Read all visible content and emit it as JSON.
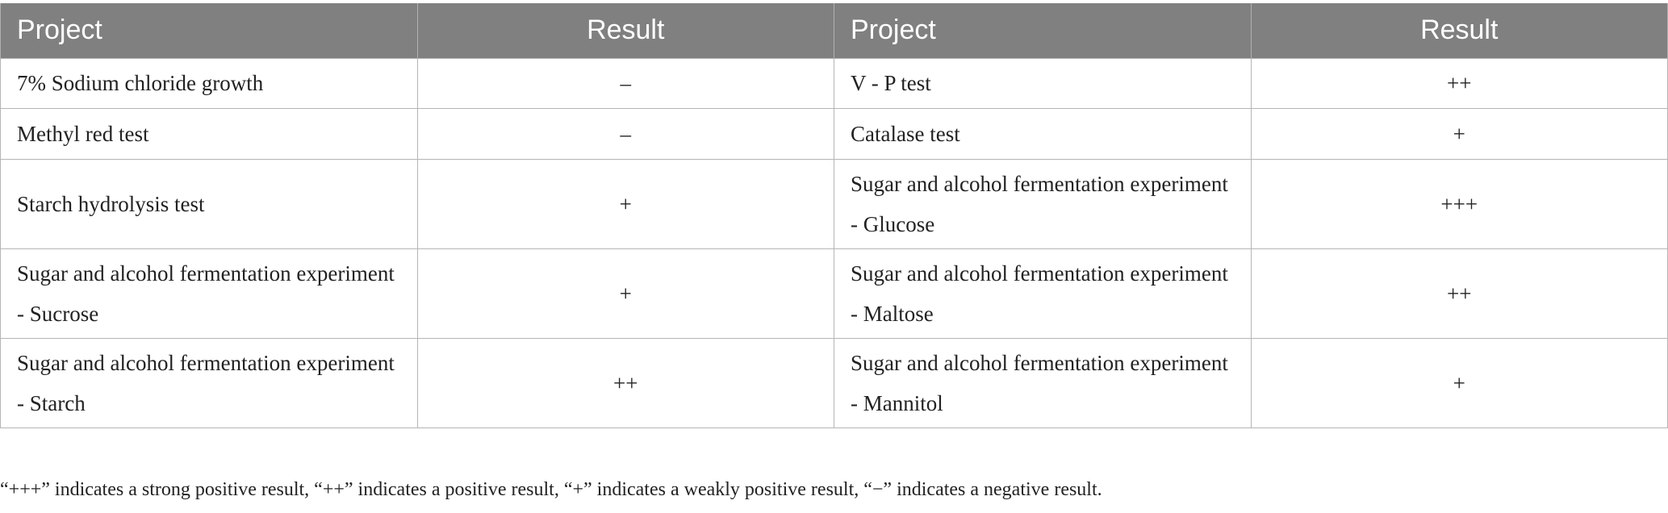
{
  "table": {
    "headers": [
      "Project",
      "Result",
      "Project",
      "Result"
    ],
    "rows": [
      [
        "7% Sodium chloride growth",
        "–",
        "V - P test",
        "++"
      ],
      [
        "Methyl red test",
        "–",
        "Catalase test",
        "+"
      ],
      [
        "Starch hydrolysis test",
        "+",
        "Sugar and alcohol fermentation experiment - Glucose",
        "+++"
      ],
      [
        "Sugar and alcohol fermentation experiment - Sucrose",
        "+",
        "Sugar and alcohol fermentation experiment - Maltose",
        "++"
      ],
      [
        "Sugar and alcohol fermentation experiment - Starch",
        "++",
        "Sugar and alcohol fermentation experiment - Mannitol",
        "+"
      ]
    ]
  },
  "footnote": "“+++” indicates a strong positive result, “++” indicates a positive result, “+” indicates a weakly positive result, “−” indicates a negative result.",
  "colors": {
    "header_bg": "#808080",
    "header_text": "#ffffff",
    "border": "#b5b5b5"
  }
}
